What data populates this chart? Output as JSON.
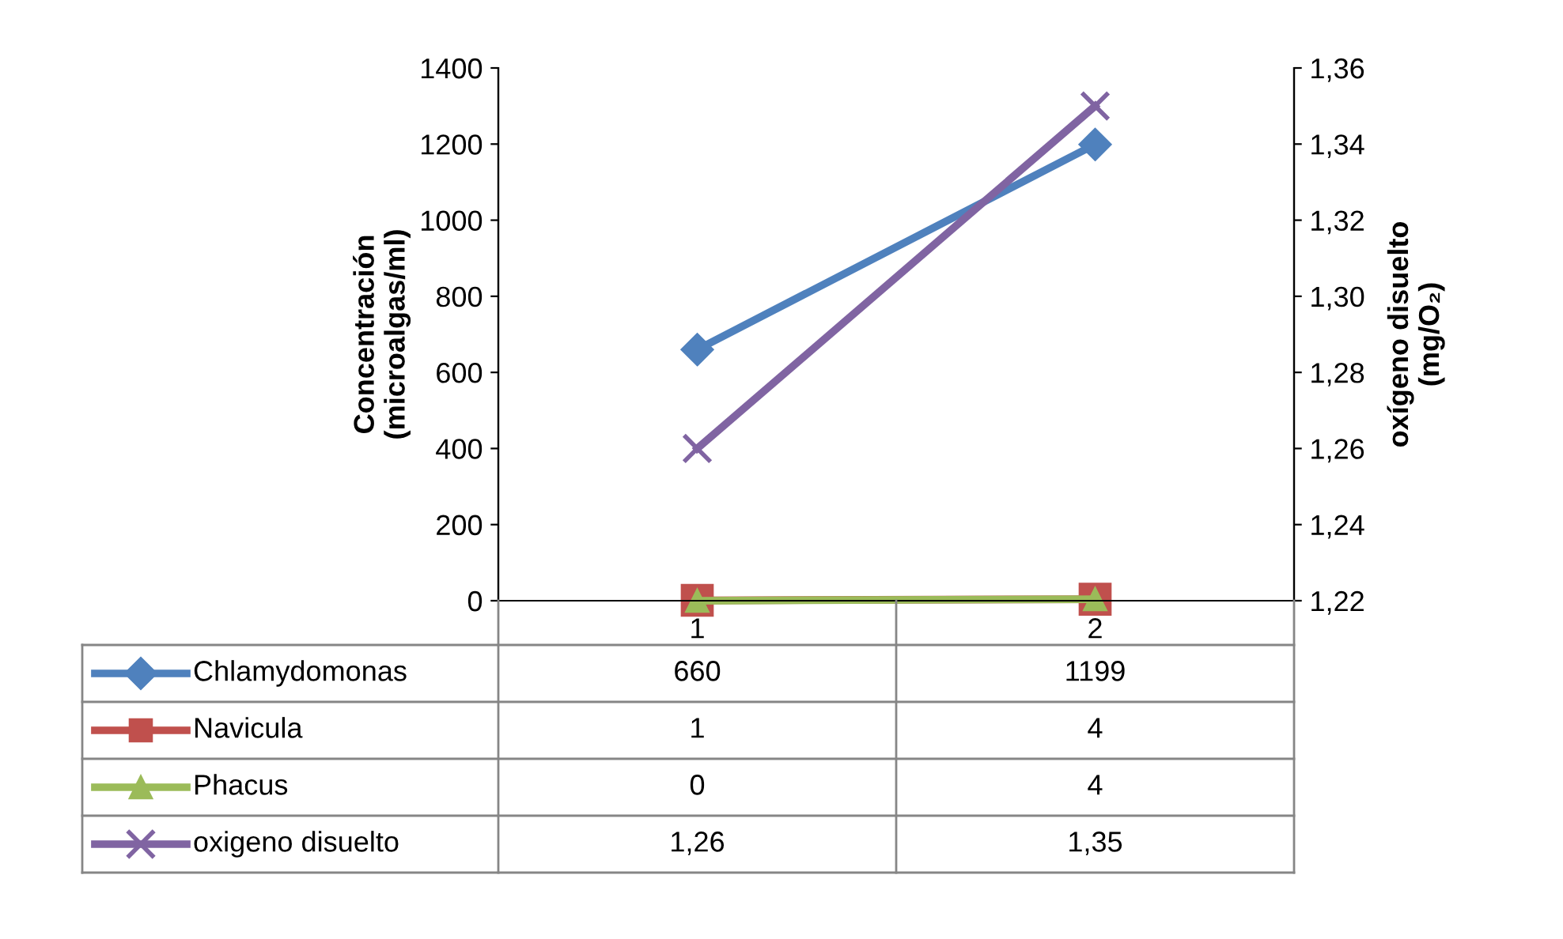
{
  "chart_data": {
    "type": "line",
    "categories": [
      "1",
      "2"
    ],
    "ylabel": "Concentración\n(microalgas/ml)",
    "y2label": "oxígeno disuelto\n(mg/O₂)",
    "ylim": [
      0,
      1400
    ],
    "yticks": [
      0,
      200,
      400,
      600,
      800,
      1000,
      1200,
      1400
    ],
    "y2lim": [
      1.22,
      1.36
    ],
    "y2ticks": [
      {
        "value": 1.22,
        "label": "1,22"
      },
      {
        "value": 1.24,
        "label": "1,24"
      },
      {
        "value": 1.26,
        "label": "1,26"
      },
      {
        "value": 1.28,
        "label": "1,28"
      },
      {
        "value": 1.3,
        "label": "1,30"
      },
      {
        "value": 1.32,
        "label": "1,32"
      },
      {
        "value": 1.34,
        "label": "1,34"
      },
      {
        "value": 1.36,
        "label": "1,36"
      }
    ],
    "grid": false,
    "legend": "left",
    "series": [
      {
        "name": "Chlamydomonas",
        "color": "#4f81bd",
        "marker": "diamond",
        "values": [
          660,
          1199
        ],
        "value_labels": [
          "660",
          "1199"
        ]
      },
      {
        "name": "Navicula",
        "color": "#c0504d",
        "marker": "square",
        "values": [
          1,
          4
        ],
        "value_labels": [
          "1",
          "4"
        ]
      },
      {
        "name": "Phacus",
        "color": "#9bbb59",
        "marker": "triangle",
        "values": [
          0,
          4
        ],
        "value_labels": [
          "0",
          "4"
        ]
      },
      {
        "name": "oxigeno disuelto",
        "color": "#8064a2",
        "marker": "cross",
        "axis": "y2",
        "values": [
          1.26,
          1.35
        ],
        "value_labels": [
          "1,26",
          "1,35"
        ]
      }
    ]
  }
}
